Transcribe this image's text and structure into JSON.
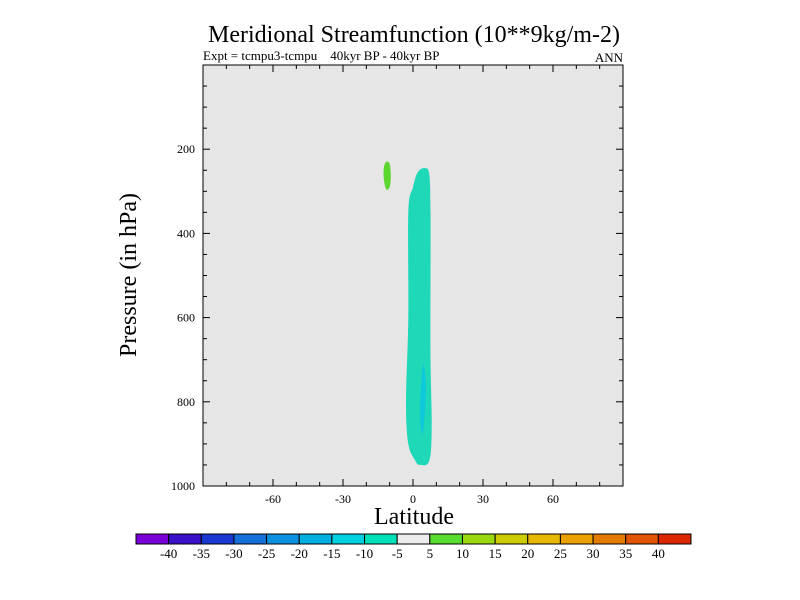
{
  "chart_data": {
    "type": "heatmap",
    "title": "Meridional Streamfunction (10**9kg/m-2)",
    "subtitle_left": "Expt = tcmpu3-tcmpu    40kyr BP - 40kyr BP",
    "subtitle_right": "ANN",
    "xlabel": "Latitude",
    "ylabel": "Pressure (in hPa)",
    "xlim": [
      -90,
      90
    ],
    "ylim": [
      1000,
      0
    ],
    "x_ticks": [
      -60,
      -30,
      0,
      30,
      60
    ],
    "y_ticks": [
      200,
      400,
      600,
      800,
      1000
    ],
    "background_color": "#e6e6e6",
    "colorbar": {
      "colors": [
        "#7a00d8",
        "#3a10c8",
        "#1838d0",
        "#1470d8",
        "#0c90e0",
        "#00b0e0",
        "#00d0e0",
        "#00e0b8",
        "#ececec",
        "#56dc2c",
        "#9ad810",
        "#cccc00",
        "#e6b800",
        "#eaa000",
        "#e47c00",
        "#e05400",
        "#dc2800"
      ],
      "labels": [
        "-40",
        "-35",
        "-30",
        "-25",
        "-20",
        "-15",
        "-10",
        "-5",
        "5",
        "10",
        "15",
        "20",
        "25",
        "30",
        "35",
        "40"
      ]
    },
    "regions": [
      {
        "value_range": "-10 to -5",
        "color": "#1ed8b8",
        "outline": [
          [
            3,
            950
          ],
          [
            7,
            940
          ],
          [
            8,
            860
          ],
          [
            7.5,
            700
          ],
          [
            7.5,
            500
          ],
          [
            7.5,
            350
          ],
          [
            7,
            260
          ],
          [
            5,
            245
          ],
          [
            2,
            255
          ],
          [
            0,
            290
          ],
          [
            -2,
            350
          ],
          [
            -2,
            600
          ],
          [
            -3,
            800
          ],
          [
            -2,
            900
          ],
          [
            1,
            940
          ]
        ]
      },
      {
        "value_range": "-15 to -10",
        "color": "#0ec8dc",
        "outline": [
          [
            4,
            880
          ],
          [
            5,
            830
          ],
          [
            5.5,
            760
          ],
          [
            4.5,
            710
          ],
          [
            3.5,
            760
          ],
          [
            3,
            830
          ]
        ]
      },
      {
        "value_range": "5 to 10",
        "color": "#5ad62e",
        "outline": [
          [
            -11.5,
            230
          ],
          [
            -10,
            235
          ],
          [
            -9.5,
            265
          ],
          [
            -10,
            290
          ],
          [
            -11.5,
            295
          ],
          [
            -12.5,
            270
          ],
          [
            -12.5,
            245
          ]
        ]
      }
    ]
  }
}
